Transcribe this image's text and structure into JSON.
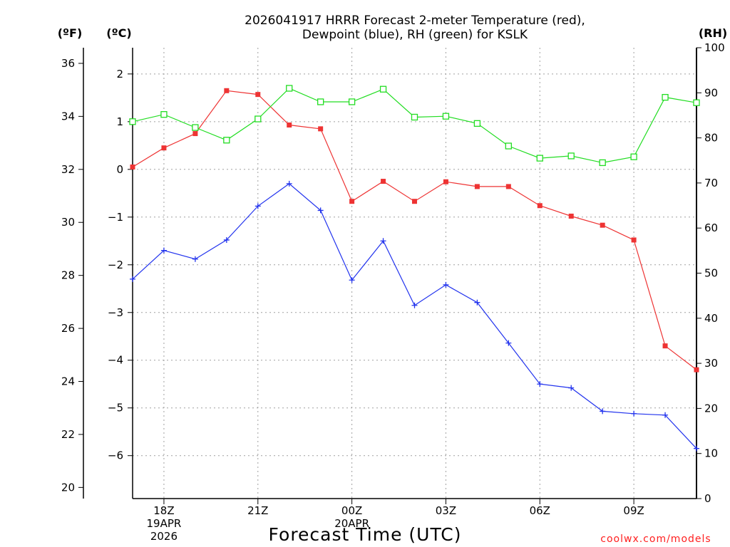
{
  "chart_data": {
    "type": "line",
    "title_lines": [
      "2026041917 HRRR Forecast 2-meter Temperature (red),",
      "Dewpoint (blue), RH (green) for KSLK"
    ],
    "units": {
      "fahrenheit": "(ºF)",
      "celsius": "(ºC)",
      "rh": "(RH)"
    },
    "xlabel": "Forecast Time (UTC)",
    "credit": "coolwx.com/models",
    "x_hours": [
      17,
      18,
      19,
      20,
      21,
      22,
      23,
      24,
      25,
      26,
      27,
      28,
      29,
      30,
      31,
      32,
      33,
      34,
      35
    ],
    "x_ticks": [
      {
        "hour": 18,
        "label": "18Z",
        "date_lines": [
          "19APR",
          "2026"
        ]
      },
      {
        "hour": 21,
        "label": "21Z",
        "date_lines": []
      },
      {
        "hour": 24,
        "label": "00Z",
        "date_lines": [
          "20APR"
        ]
      },
      {
        "hour": 27,
        "label": "03Z",
        "date_lines": []
      },
      {
        "hour": 30,
        "label": "06Z",
        "date_lines": []
      },
      {
        "hour": 33,
        "label": "09Z",
        "date_lines": []
      }
    ],
    "celsius_axis": {
      "range": [
        -6.9,
        2.55
      ],
      "ticks": [
        "2",
        "1",
        "0",
        "−1",
        "−2",
        "−3",
        "−4",
        "−5",
        "−6"
      ],
      "tick_values": [
        2,
        1,
        0,
        -1,
        -2,
        -3,
        -4,
        -5,
        -6
      ]
    },
    "fahrenheit_axis": {
      "ticks": [
        "36",
        "34",
        "32",
        "30",
        "28",
        "26",
        "24",
        "22",
        "20"
      ],
      "tick_values": [
        36,
        34,
        32,
        30,
        28,
        26,
        24,
        22,
        20
      ]
    },
    "rh_axis": {
      "range": [
        0,
        100
      ],
      "ticks": [
        "100",
        "90",
        "80",
        "70",
        "60",
        "50",
        "40",
        "30",
        "20",
        "10",
        "0"
      ],
      "tick_values": [
        100,
        90,
        80,
        70,
        60,
        50,
        40,
        30,
        20,
        10,
        0
      ]
    },
    "series": [
      {
        "name": "Temperature",
        "axis": "celsius",
        "color": "#ee3333",
        "marker": "filled-square",
        "values": [
          0.05,
          0.45,
          0.75,
          1.65,
          1.57,
          0.93,
          0.85,
          -0.67,
          -0.25,
          -0.67,
          -0.26,
          -0.36,
          -0.36,
          -0.76,
          -0.98,
          -1.17,
          -1.48,
          -3.7,
          -4.2
        ]
      },
      {
        "name": "Dewpoint",
        "axis": "celsius",
        "color": "#2233ee",
        "marker": "plus",
        "values": [
          -2.3,
          -1.7,
          -1.88,
          -1.48,
          -0.77,
          -0.3,
          -0.86,
          -2.32,
          -1.5,
          -2.85,
          -2.42,
          -2.79,
          -3.64,
          -4.5,
          -4.58,
          -5.07,
          -5.12,
          -5.15,
          -5.85
        ]
      },
      {
        "name": "RH",
        "axis": "rh",
        "color": "#22dd22",
        "marker": "open-square",
        "values": [
          83.6,
          85.2,
          82.3,
          79.5,
          84.2,
          91.0,
          88.0,
          88.0,
          90.8,
          84.6,
          84.8,
          83.2,
          78.2,
          75.5,
          76.0,
          74.5,
          75.8,
          89.0,
          87.8
        ]
      }
    ]
  }
}
